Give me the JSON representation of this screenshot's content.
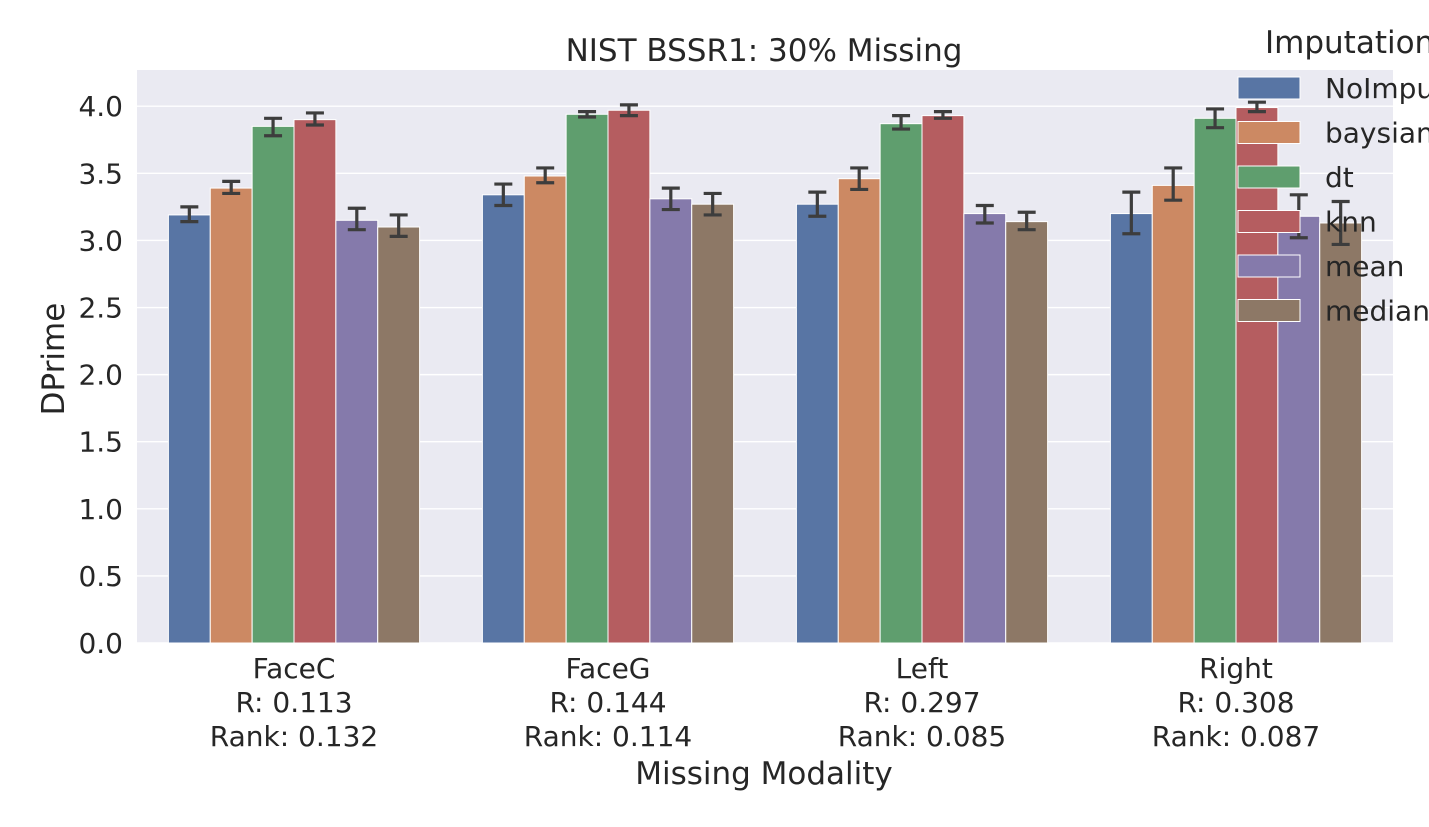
{
  "chart_data": {
    "type": "bar",
    "title": "NIST BSSR1: 30% Missing",
    "xlabel": "Missing Modality",
    "ylabel": "DPrime",
    "ylim": [
      0,
      4.27
    ],
    "yticks": [
      "0.0",
      "0.5",
      "1.0",
      "1.5",
      "2.0",
      "2.5",
      "3.0",
      "3.5",
      "4.0"
    ],
    "categories": [
      {
        "name": "FaceC",
        "r": "R: 0.113",
        "rank": "Rank: 0.132"
      },
      {
        "name": "FaceG",
        "r": "R: 0.144",
        "rank": "Rank: 0.114"
      },
      {
        "name": "Left",
        "r": "R: 0.297",
        "rank": "Rank: 0.085"
      },
      {
        "name": "Right",
        "r": "R: 0.308",
        "rank": "Rank: 0.087"
      }
    ],
    "legend": {
      "title": "Imputation",
      "placement": "top-right (outside, clipped)"
    },
    "grid": true,
    "series": [
      {
        "name": "NoImputation",
        "color": "#5875a4",
        "values": [
          3.19,
          3.34,
          3.27,
          3.2
        ],
        "err_low": [
          3.14,
          3.26,
          3.18,
          3.05
        ],
        "err_high": [
          3.25,
          3.42,
          3.36,
          3.36
        ]
      },
      {
        "name": "baysian",
        "color": "#cc8963",
        "values": [
          3.39,
          3.48,
          3.46,
          3.41
        ],
        "err_low": [
          3.35,
          3.43,
          3.38,
          3.3
        ],
        "err_high": [
          3.44,
          3.54,
          3.54,
          3.54
        ]
      },
      {
        "name": "dt",
        "color": "#5f9e6e",
        "values": [
          3.85,
          3.94,
          3.87,
          3.91
        ],
        "err_low": [
          3.78,
          3.92,
          3.83,
          3.84
        ],
        "err_high": [
          3.91,
          3.96,
          3.93,
          3.98
        ]
      },
      {
        "name": "knn",
        "color": "#b55d60",
        "values": [
          3.9,
          3.97,
          3.93,
          3.99
        ],
        "err_low": [
          3.86,
          3.93,
          3.91,
          3.96
        ],
        "err_high": [
          3.95,
          4.01,
          3.96,
          4.03
        ]
      },
      {
        "name": "mean",
        "color": "#857aab",
        "values": [
          3.15,
          3.31,
          3.2,
          3.18
        ],
        "err_low": [
          3.08,
          3.23,
          3.13,
          3.02
        ],
        "err_high": [
          3.24,
          3.39,
          3.26,
          3.34
        ]
      },
      {
        "name": "median",
        "color": "#8d7866",
        "values": [
          3.1,
          3.27,
          3.14,
          3.13
        ],
        "err_low": [
          3.03,
          3.19,
          3.08,
          2.97
        ],
        "err_high": [
          3.19,
          3.35,
          3.21,
          3.29
        ]
      }
    ]
  }
}
